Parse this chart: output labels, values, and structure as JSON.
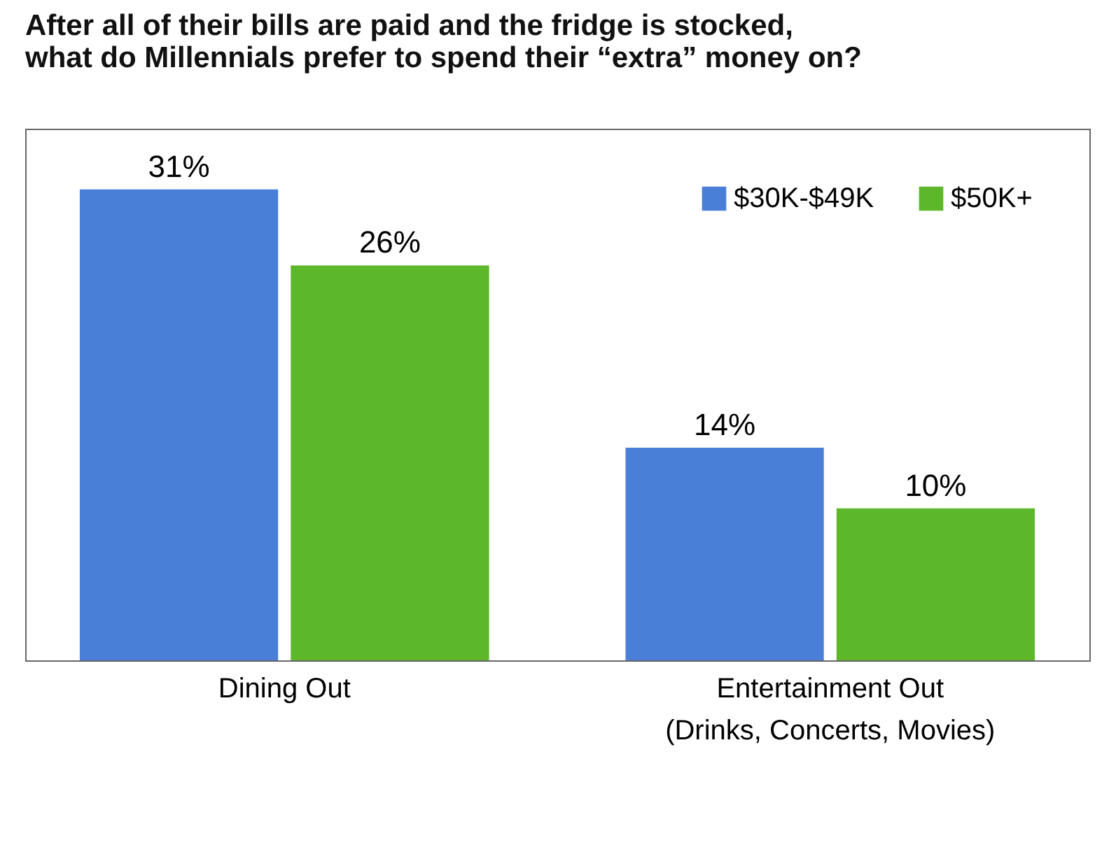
{
  "chart_data": {
    "type": "bar",
    "title": "After all of their bills are paid and the fridge is stocked, what do Millennials prefer to spend their “extra” money on?",
    "categories": [
      "Dining Out",
      "Entertainment Out\n(Drinks, Concerts, Movies)"
    ],
    "series": [
      {
        "name": "$30K-$49K",
        "color": "#4a7fd8",
        "values": [
          31,
          14
        ],
        "value_labels": [
          "31%",
          "14%"
        ]
      },
      {
        "name": "$50K+",
        "color": "#5cb82a",
        "values": [
          26,
          10
        ],
        "value_labels": [
          "26%",
          "10%"
        ]
      }
    ],
    "legend": "top right",
    "grid": false
  }
}
